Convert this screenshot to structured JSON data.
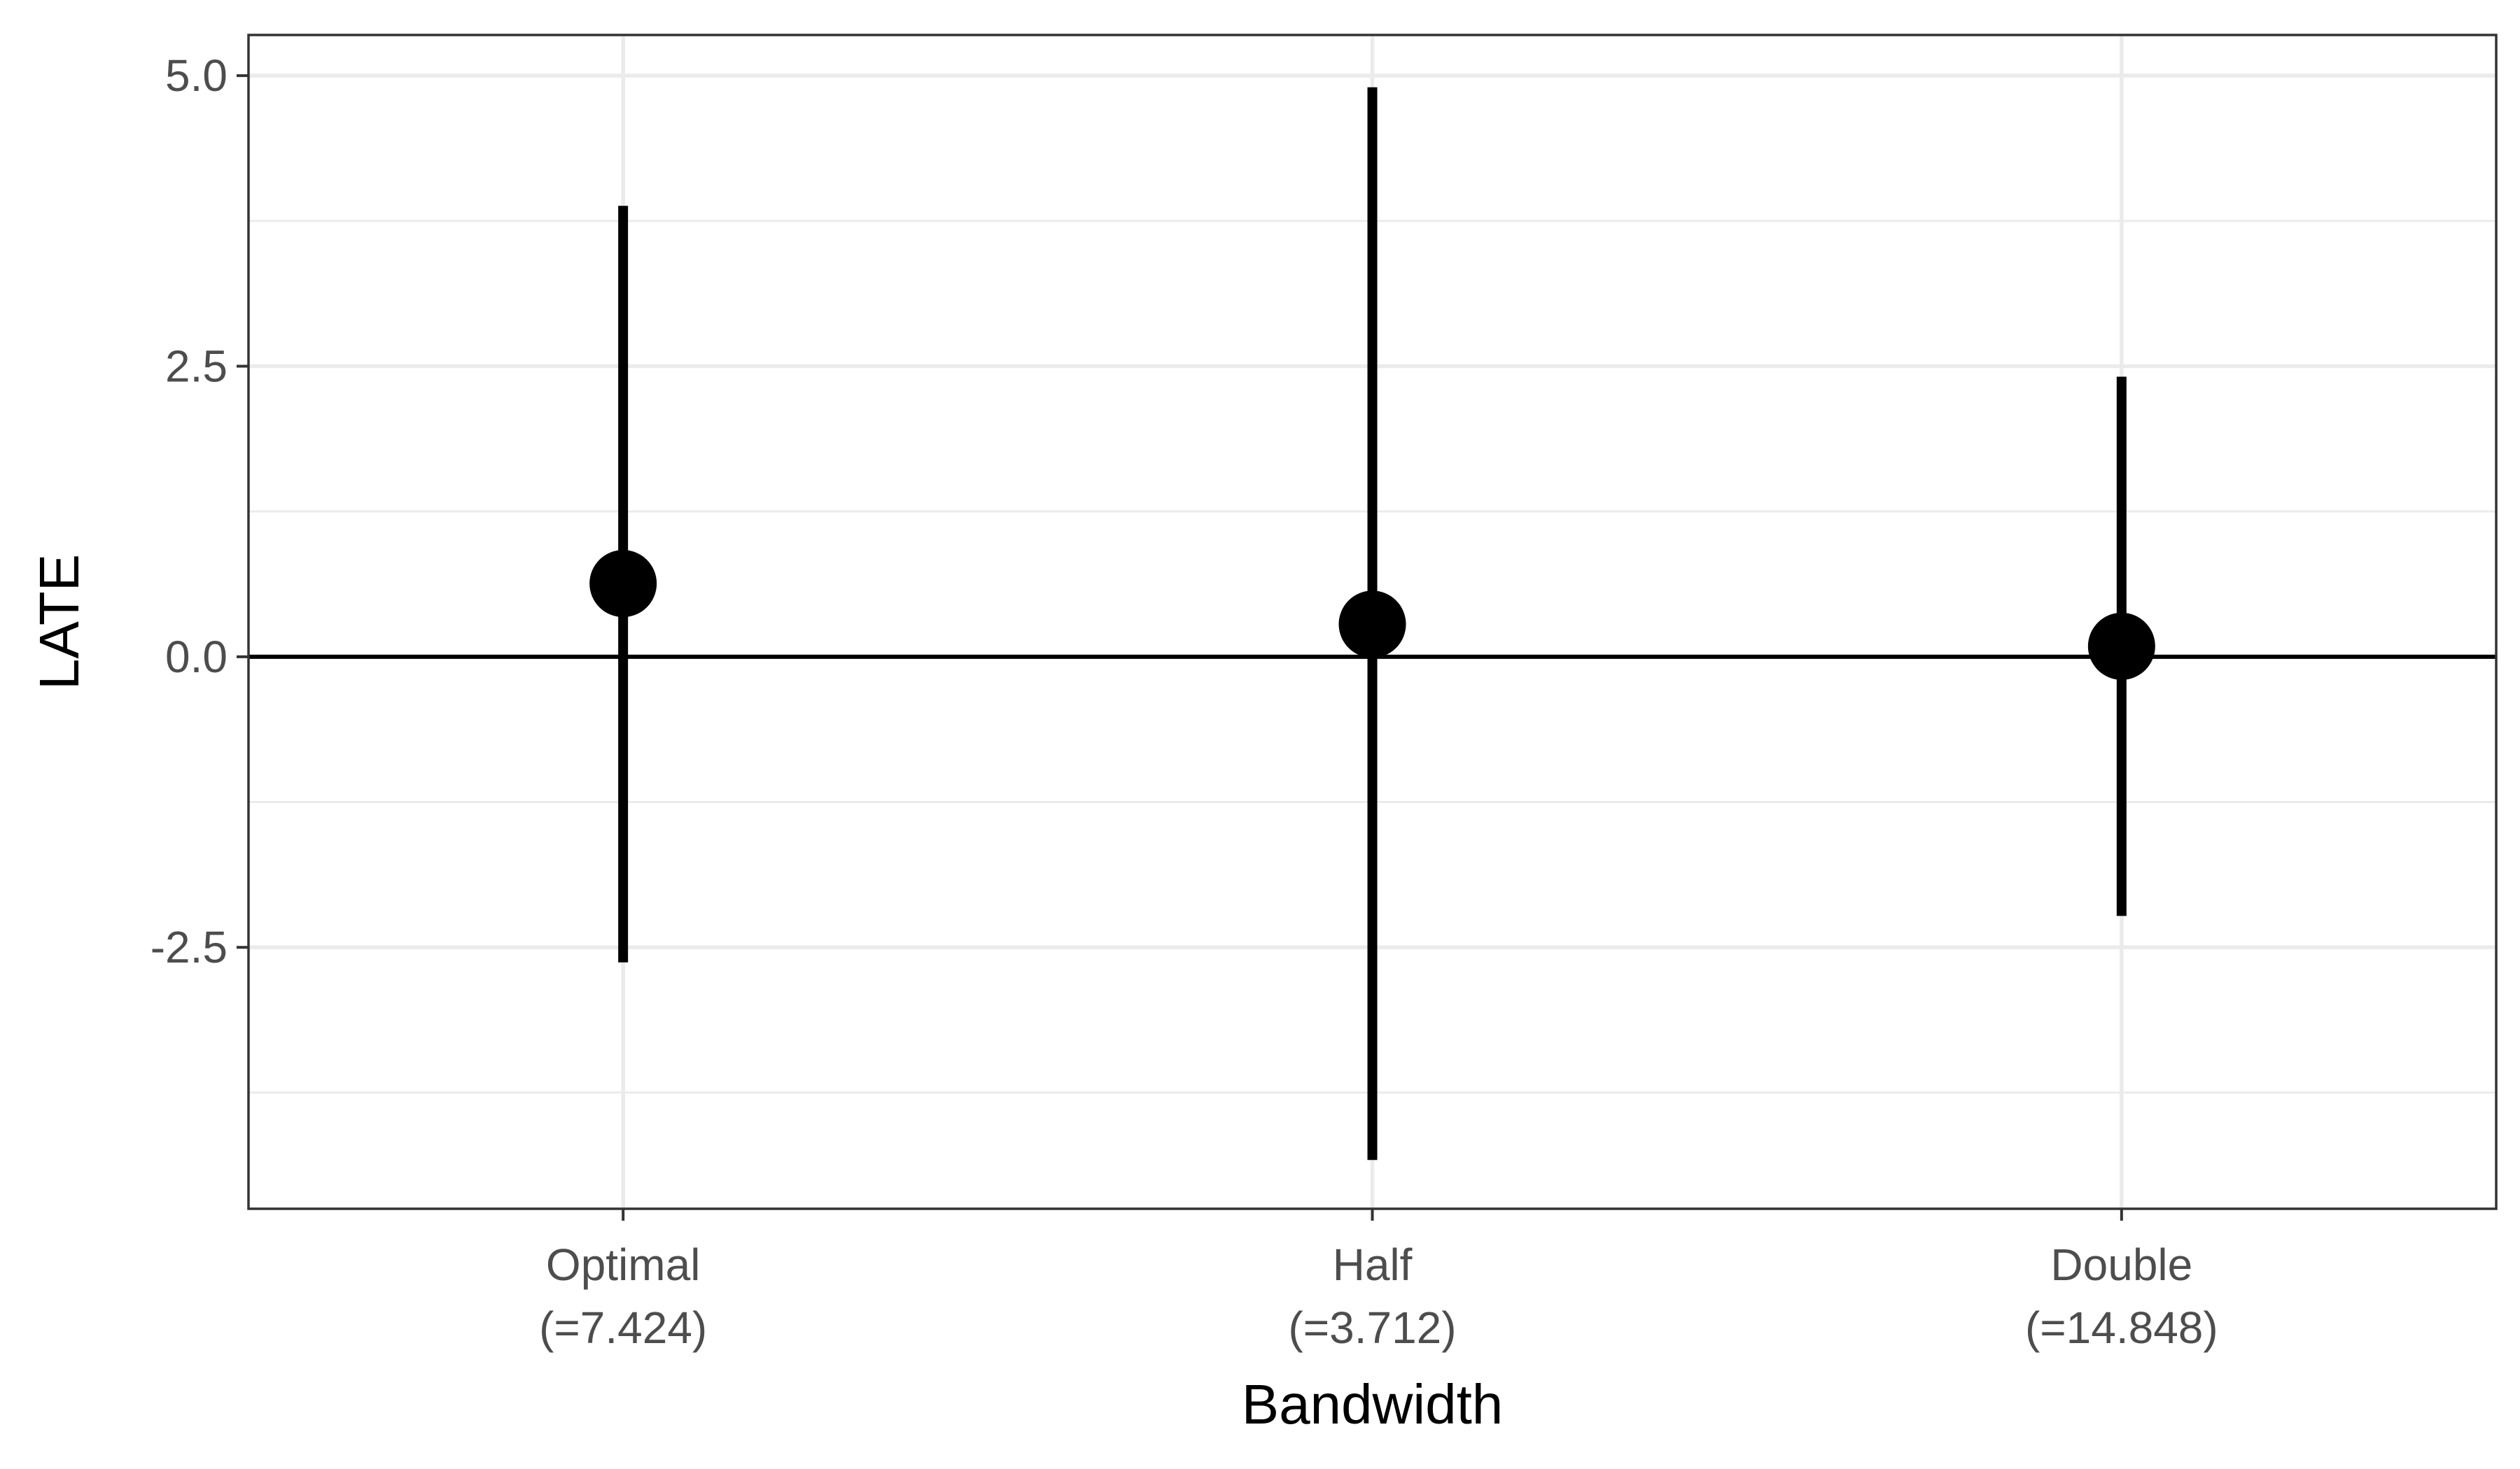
{
  "chart_data": {
    "type": "errorbar",
    "xlabel": "Bandwidth",
    "ylabel": "LATE",
    "categories": [
      [
        "Optimal",
        "(=7.424)"
      ],
      [
        "Half",
        "(=3.712)"
      ],
      [
        "Double",
        "(=14.848)"
      ]
    ],
    "estimates": [
      0.63,
      0.28,
      0.09
    ],
    "ci_lower": [
      -2.63,
      -4.33,
      -2.23
    ],
    "ci_upper": [
      3.88,
      4.9,
      2.41
    ],
    "ylim": [
      -4.75,
      5.35
    ],
    "y_ticks": [
      -2.5,
      0.0,
      2.5,
      5.0
    ],
    "y_tick_labels": [
      "-2.5",
      "0.0",
      "2.5",
      "5.0"
    ],
    "y_minor_ticks": [
      -3.75,
      -1.25,
      1.25,
      3.75
    ],
    "reference_line": 0,
    "grid": true,
    "legend": "none",
    "colors": {
      "marks": "#000000",
      "grid": "#ebebeb",
      "tick_text": "#4d4d4d",
      "panel_border": "#333333"
    }
  }
}
